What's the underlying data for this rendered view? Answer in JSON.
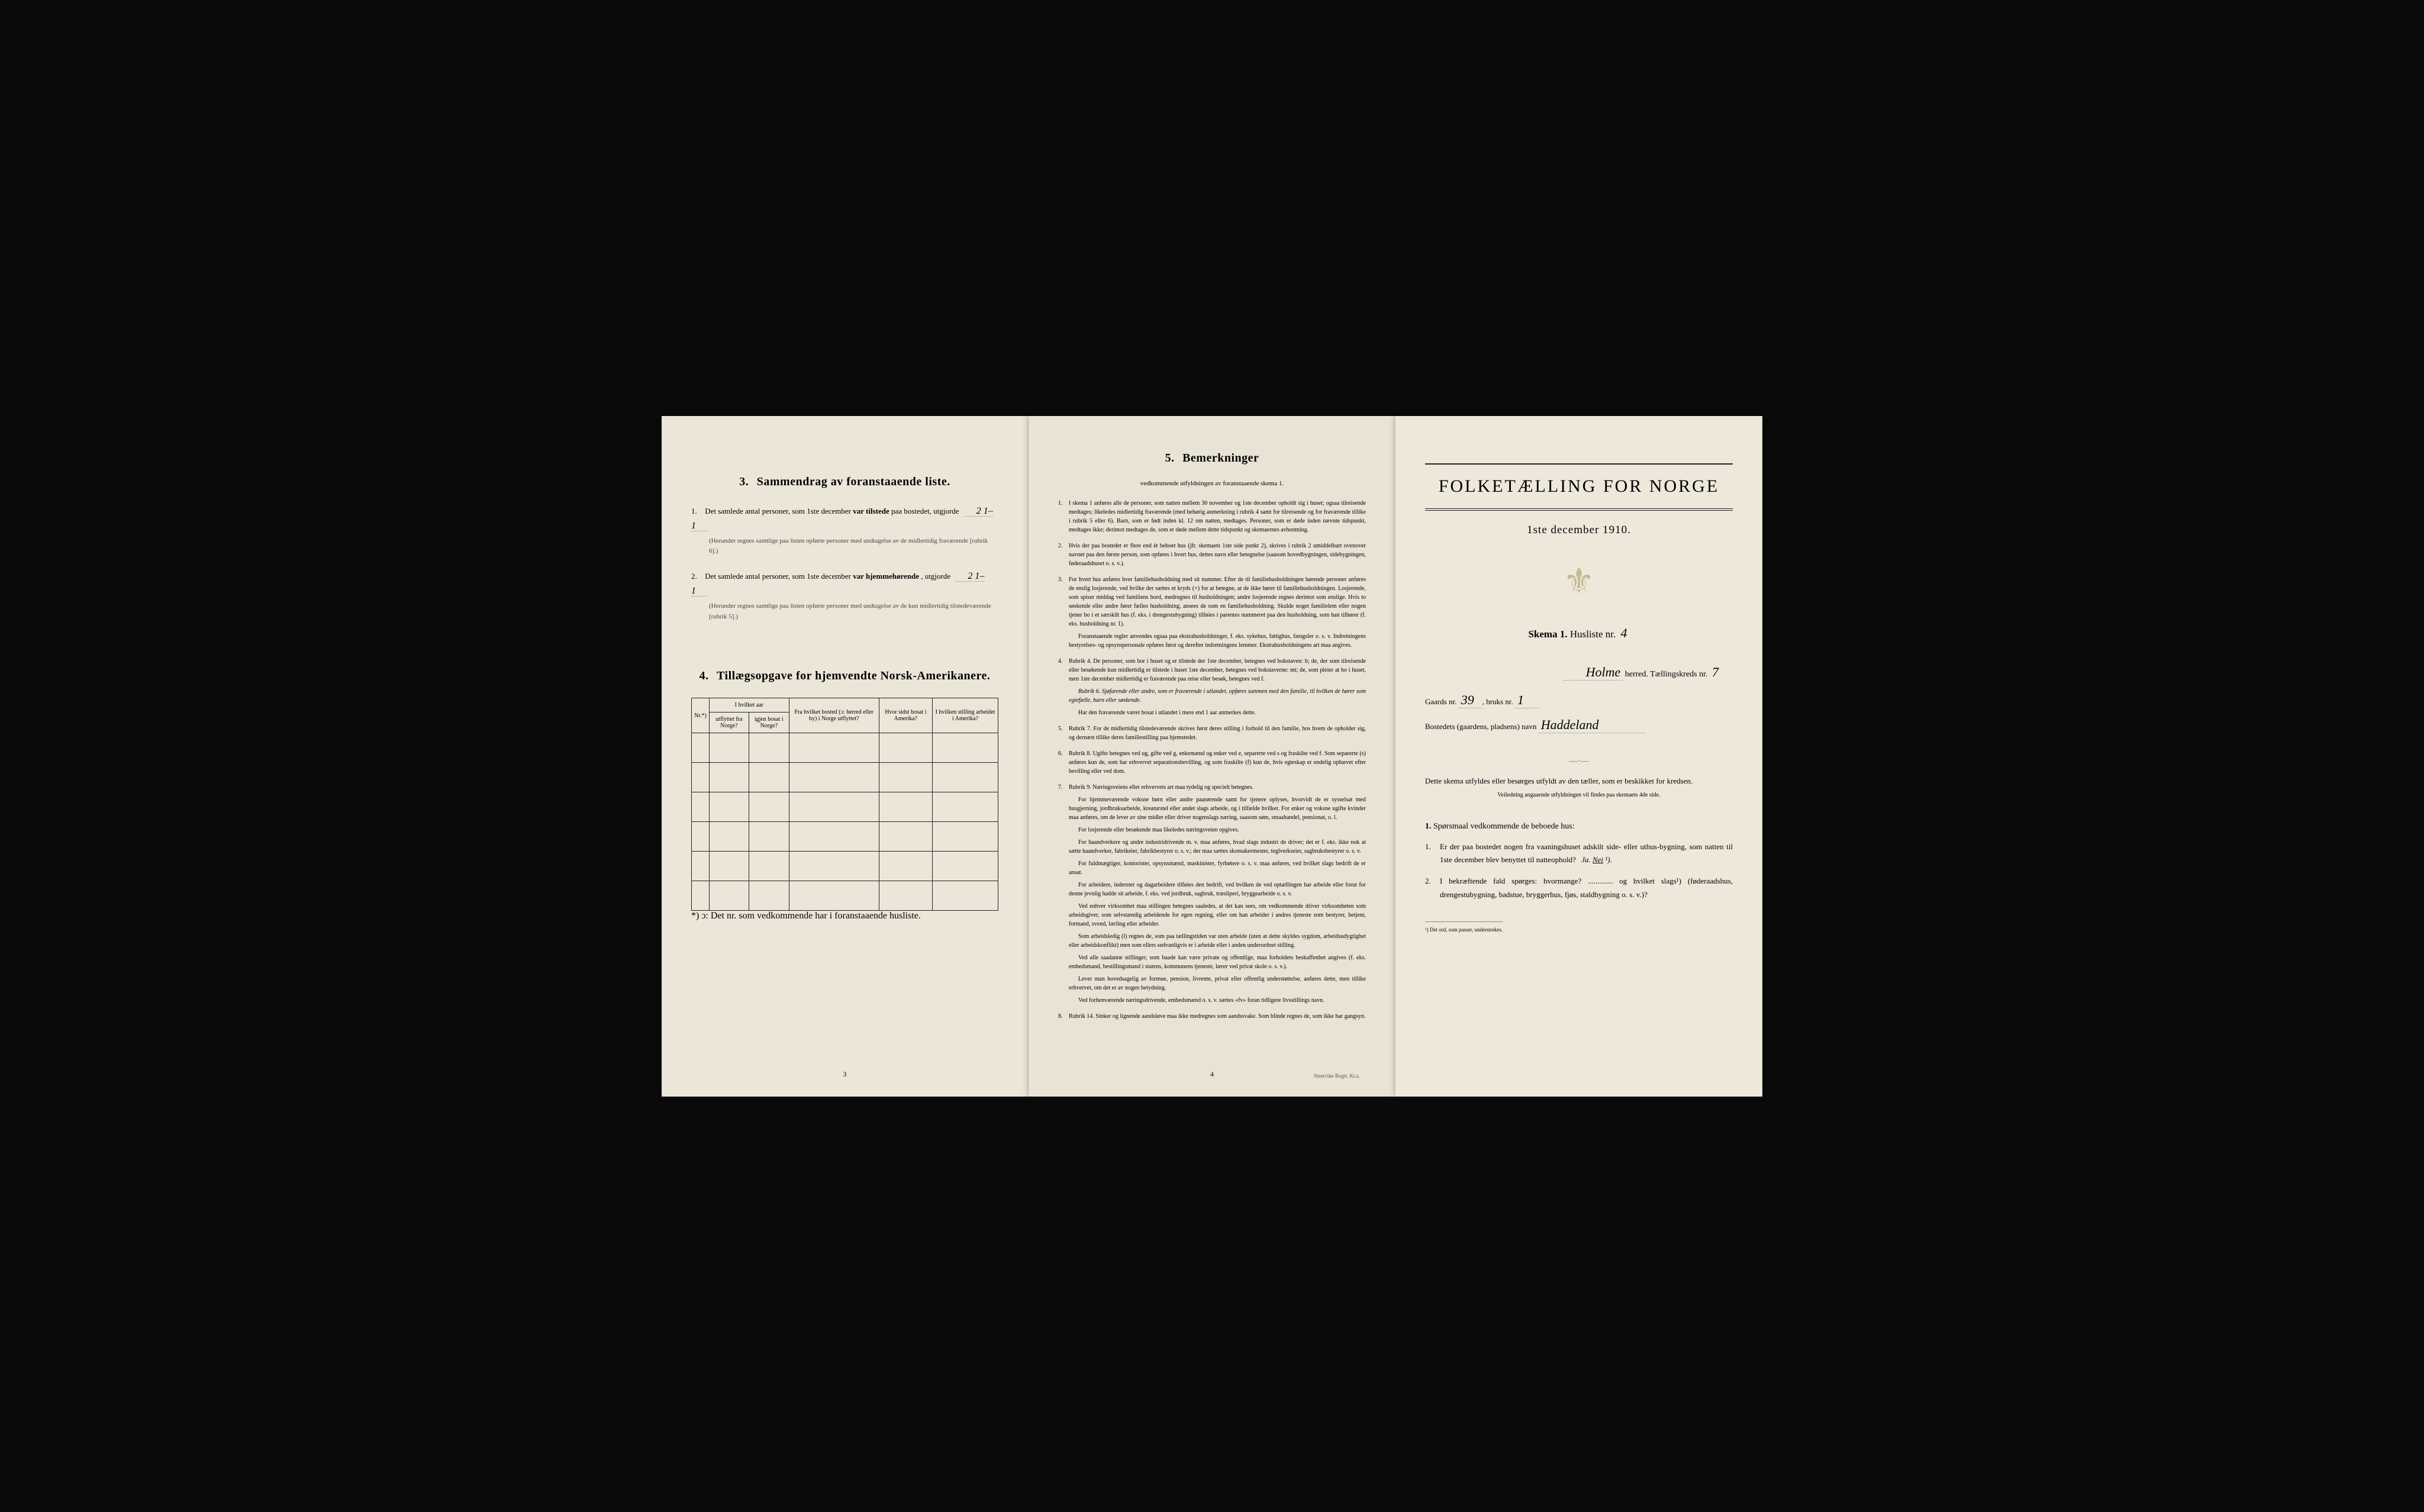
{
  "colors": {
    "paper_bg_left": "#ebe6d8",
    "paper_bg_mid": "#e8e3d4",
    "paper_bg_right": "#ede8da",
    "text": "#1a1a1a",
    "border": "#222222",
    "crest": "#aa9966"
  },
  "page_left": {
    "section3": {
      "heading_num": "3.",
      "heading": "Sammendrag av foranstaaende liste.",
      "item1": {
        "num": "1.",
        "text_before": "Det samlede antal personer, som 1ste december",
        "text_bold": "var tilstede",
        "text_after": "paa bostedet, utgjorde",
        "value": "2   1–1",
        "note": "(Herunder regnes samtlige paa listen opførte personer med undtagelse av de midlertidig fraværende [rubrik 6].)"
      },
      "item2": {
        "num": "2.",
        "text_before": "Det samlede antal personer, som 1ste december",
        "text_bold": "var hjemmehørende",
        "text_after": ", utgjorde",
        "value": "2   1–1",
        "note": "(Herunder regnes samtlige paa listen opførte personer med undtagelse av de kun midlertidig tilstedeværende [rubrik 5].)"
      }
    },
    "section4": {
      "heading_num": "4.",
      "heading": "Tillægsopgave for hjemvendte Norsk-Amerikanere.",
      "table": {
        "headers": {
          "nr": "Nr.*)",
          "hvilket_aar": "I hvilket aar",
          "utflyttet": "utflyttet fra Norge?",
          "igjen": "igjen bosat i Norge?",
          "fra_bosted": "Fra hvilket bosted (ɔ: herred eller by) i Norge utflyttet?",
          "hvor_sidst": "Hvor sidst bosat i Amerika?",
          "stilling": "I hvilken stilling arbeidet i Amerika?"
        },
        "rows": 6
      },
      "footnote": "*) ɔ: Det nr. som vedkommende har i foranstaaende husliste."
    },
    "page_num": "3"
  },
  "page_middle": {
    "section5": {
      "heading_num": "5.",
      "heading": "Bemerkninger",
      "subtitle": "vedkommende utfyldningen av foranstaaende skema 1.",
      "rules": [
        "I skema 1 anføres alle de personer, som natten mellem 30 november og 1ste december opholdt sig i huset; ogsaa tilreisende medtages; likeledes midlertidig fraværende (med behørig anmerkning i rubrik 4 samt for tilreisende og for fraværende tillike i rubrik 5 eller 6). Barn, som er født inden kl. 12 om natten, medtages. Personer, som er døde inden nævnte tidspunkt, medtages ikke; derimot medtages de, som er døde mellem dette tidspunkt og skemaernes avhentning.",
        "Hvis der paa bostedet er flere end ét beboet hus (jfr. skemaets 1ste side punkt 2), skrives i rubrik 2 umiddelbart ovenover navnet paa den første person, som opføres i hvert hus, dettes navn eller betegnelse (saasom hovedbygningen, sidebygningen, føderaadshuset o. s. v.).",
        "For hvert hus anføres hver familiehusholdning med sit nummer. Efter de til familiehusholdningen hørende personer anføres de enslig losjerende, ved hvilke der sættes et kryds (×) for at betegne, at de ikke hører til familiehusholdningen. Losjerende, som spiser middag ved familiens bord, medregnes til husholdningen; andre losjerende regnes derimot som enslige. Hvis to søskende eller andre fører fælles husholdning, ansees de som en familiehusholdning. Skulde noget familielem eller nogen tjener bo i et særskilt hus (f. eks. i drengestubygning) tilføies i parentes nummeret paa den husholdning, som han tilhører (f. eks. husholdning nr. 1).",
        "Rubrik 4. De personer, som bor i huset og er tilstede der 1ste december, betegnes ved bokstaven: b; de, der som tilreisende eller besøkende kun midlertidig er tilstede i huset 1ste december, betegnes ved bokstaverne: mt; de, som pleier at bo i huset, men 1ste december midlertidig er fraværende paa reise eller besøk, betegnes ved f.",
        "Rubrik 7. For de midlertidig tilstedeværende skrives først deres stilling i forhold til den familie, hos hvem de opholder sig, og dernæst tillike deres familiestilling paa hjemstedet.",
        "Rubrik 8. Ugifte betegnes ved ug, gifte ved g, enkemænd og enker ved e, separerte ved s og fraskilte ved f. Som separerte (s) anføres kun de, som har erhvervet separationsbevilling, og som fraskilte (f) kun de, hvis egteskap er endelig ophævet efter bevilling eller ved dom.",
        "Rubrik 9. Næringsveiens eller erhvervets art maa tydelig og specielt betegnes.",
        "Rubrik 14. Sinker og lignende aandsløve maa ikke medregnes som aandssvake. Som blinde regnes de, som ikke har gangsyn."
      ],
      "rule3_extra": "Foranstaaende regler anvendes ogsaa paa ekstrahusholdninger, f. eks. sykehus, fattighus, fængsler o. s. v. Indretningens bestyrelses- og opsynspersonale opføres først og derefter indretningens lemmer. Ekstrahusholdningens art maa angives.",
      "rule4_extra1": "Rubrik 6. Sjøfarende eller andre, som er fraværende i utlandet, opføres sammen med den familie, til hvilken de hører som egtefælle, barn eller søskende.",
      "rule4_extra2": "Har den fraværende været bosat i utlandet i mere end 1 aar anmerkes dette.",
      "rule7_paras": [
        "For hjemmeværende voksne børn eller andre paarørende samt for tjenere oplyses, hvorvidt de er sysselsat med husgjerning, jordbruksarbeide, kreaturstel eller andet slags arbeide, og i tilfælde hvilket. For enker og voksne ugifte kvinder maa anføres, om de lever av sine midler eller driver nogenslags næring, saasom søm, smaahandel, pensionat, o. l.",
        "For losjerende eller besøkende maa likeledes næringsveien opgives.",
        "For haandverkere og andre industridrivende m. v. maa anføres, hvad slags industri de driver; det er f. eks. ikke nok at sætte haandverker, fabrikeier, fabrikbestyrer o. s. v.; der maa sættes skomakermester, teglverkseier, sagbruksbestyrer o. s. v.",
        "For fuldmægtiger, kontorister, opsynsmænd, maskinister, fyrbøtere o. s. v. maa anføres, ved hvilket slags bedrift de er ansat.",
        "For arbeidere, inderster og dagarbeidere tilføies den bedrift, ved hvilken de ved optællingen har arbeide eller forut for denne jevnlig hadde sit arbeide, f. eks. ved jordbruk, sagbruk, træsliperi, bryggearbeide o. s. v.",
        "Ved enhver virksomhet maa stillingen betegnes saaledes, at det kan sees, om vedkommende driver virksomheten som arbeidsgiver, som selvstændig arbeidende for egen regning, eller om han arbeider i andres tjeneste som bestyrer, betjent, formand, svend, lærling eller arbeider.",
        "Som arbeidsledig (l) regnes de, som paa tællingstiden var uten arbeide (uten at dette skyldes sygdom, arbeidsudygtighet eller arbeidskonflikt) men som ellers sedvanligvis er i arbeide eller i anden underordnet stilling.",
        "Ved alle saadanne stillinger, som baade kan være private og offentlige, maa forholdets beskaffenhet angives (f. eks. embedsmand, bestillingsmand i statens, kommunens tjeneste, lærer ved privat skole o. s. v.).",
        "Lever man hovedsagelig av formue, pension, livrente, privat eller offentlig understøttelse, anføres dette, men tillike erhvervet, om det er av nogen betydning.",
        "Ved forhenværende næringsdrivende, embedsmænd o. s. v. sættes «fv» foran tidligere livsstillings navn."
      ]
    },
    "page_num": "4",
    "imprint": "Steen'ske Bogtr. Kr.a."
  },
  "page_right": {
    "main_title": "FOLKETÆLLING FOR NORGE",
    "subtitle_date": "1ste december 1910.",
    "skema": {
      "label1": "Skema 1.",
      "label2": "Husliste nr.",
      "value": "4"
    },
    "herred": {
      "name": "Holme",
      "label": "herred.",
      "tlabel": "Tællingskreds nr.",
      "tnum": "7"
    },
    "gaards": {
      "label1": "Gaards nr.",
      "val1": "39",
      "label2": "bruks nr.",
      "val2": "1"
    },
    "bosted": {
      "label": "Bostedets (gaardens, pladsens) navn",
      "value": "Haddeland"
    },
    "instruction": "Dette skema utfyldes eller besørges utfyldt av den tæller, som er beskikket for kredsen.",
    "instruction_small": "Veiledning angaaende utfyldningen vil findes paa skemaets 4de side.",
    "sporsmaal": {
      "num": "1.",
      "text": "Spørsmaal vedkommende de beboede hus:"
    },
    "questions": [
      {
        "text": "Er der paa bostedet nogen fra vaaningshuset adskilt side- eller uthus-bygning, som natten til 1ste december blev benyttet til natteophold?",
        "ja": "Ja.",
        "nei": "Nei",
        "sup": "¹)."
      },
      {
        "text": "I bekræftende fald spørges: hvormange? ............. og hvilket slags¹) (føderaadshus, drengestubygning, badstue, bryggerhus, fjøs, staldbygning o. s. v.)?"
      }
    ],
    "footnote": "¹) Det ord, som passer, understrekes."
  }
}
